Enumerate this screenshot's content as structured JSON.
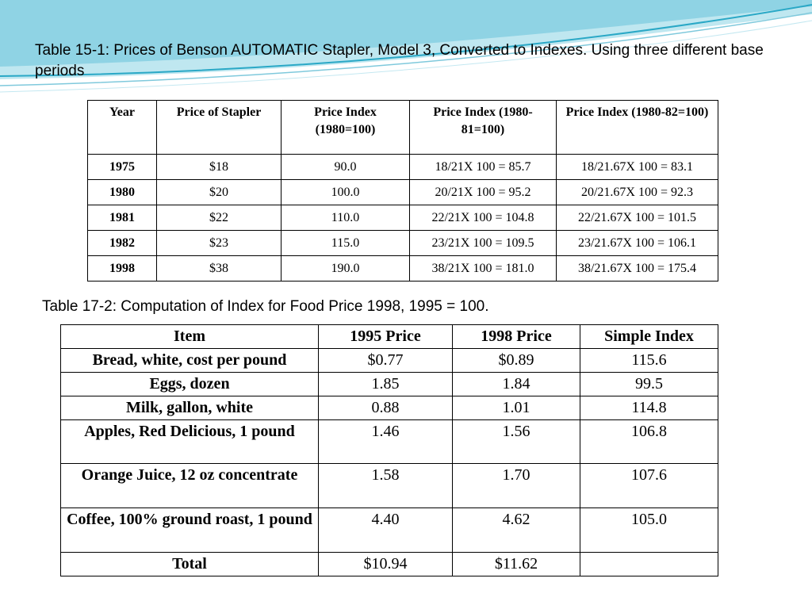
{
  "caption1": "Table 15-1: Prices of Benson  AUTOMATIC  Stapler, Model 3, Converted to Indexes. Using three different base periods",
  "caption2": "Table 17-2: Computation of Index for Food Price 1998, 1995 = 100.",
  "table1": {
    "headers": [
      "Year",
      "Price of Stapler",
      "Price Index (1980=100)",
      "Price Index (1980-81=100)",
      "Price Index (1980-82=100)"
    ],
    "rows": [
      [
        "1975",
        "$18",
        "90.0",
        "18/21X 100 = 85.7",
        "18/21.67X 100 = 83.1"
      ],
      [
        "1980",
        "$20",
        "100.0",
        "20/21X 100 = 95.2",
        "20/21.67X 100 = 92.3"
      ],
      [
        "1981",
        "$22",
        "110.0",
        "22/21X 100 = 104.8",
        "22/21.67X 100 = 101.5"
      ],
      [
        "1982",
        "$23",
        "115.0",
        "23/21X 100 = 109.5",
        "23/21.67X 100 = 106.1"
      ],
      [
        "1998",
        "$38",
        "190.0",
        "38/21X 100 = 181.0",
        "38/21.67X 100 = 175.4"
      ]
    ]
  },
  "table2": {
    "headers": [
      "Item",
      "1995 Price",
      "1998 Price",
      "Simple Index"
    ],
    "rows": [
      [
        "Bread, white, cost per pound",
        "$0.77",
        "$0.89",
        "115.6"
      ],
      [
        "Eggs, dozen",
        "1.85",
        "1.84",
        "99.5"
      ],
      [
        "Milk, gallon, white",
        "0.88",
        "1.01",
        "114.8"
      ],
      [
        "Apples, Red Delicious, 1 pound",
        "1.46",
        "1.56",
        "106.8"
      ],
      [
        "Orange Juice, 12 oz concentrate",
        "1.58",
        "1.70",
        "107.6"
      ],
      [
        "Coffee, 100% ground roast, 1 pound",
        "4.40",
        "4.62",
        "105.0"
      ],
      [
        "Total",
        "$10.94",
        "$11.62",
        ""
      ]
    ]
  },
  "colors": {
    "accent": "#2aa8c6",
    "accent_light": "#a8dde9"
  }
}
